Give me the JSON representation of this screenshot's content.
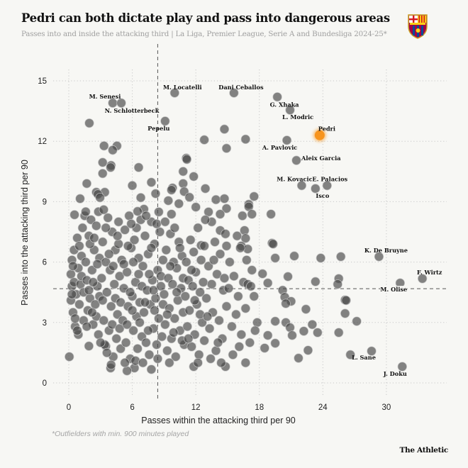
{
  "header": {
    "title": "Pedri can both dictate play and pass into dangerous areas",
    "subtitle": "Passes into and inside the attacking third | La Liga, Premier League, Serie A and Bundesliga 2024-25*",
    "crest_icon": "fc-barcelona-crest"
  },
  "footer": {
    "footnote": "*Outfielders with min. 900 minutes played",
    "brand": "The Athletic"
  },
  "colors": {
    "background": "#f7f7f4",
    "dot": "#4a4a4a",
    "highlight": "#f7941d",
    "grid": "#c8c8c8"
  },
  "chart_data": {
    "type": "scatter",
    "title": "Pedri can both dictate play and pass into dangerous areas",
    "xlabel": "Passes within the attacking third per 90",
    "ylabel": "Passes into the attacking third per 90",
    "xlim": [
      -1.5,
      35.5
    ],
    "ylim": [
      -1,
      16
    ],
    "xticks": [
      0,
      6,
      12,
      18,
      24,
      30
    ],
    "yticks": [
      0,
      3,
      6,
      9,
      12,
      15
    ],
    "grid": true,
    "reference_lines": {
      "x_mean": 8.4,
      "y_mean": 4.68
    },
    "highlight": {
      "name": "Pedri",
      "x": 23.7,
      "y": 12.3
    },
    "labeled_points": [
      {
        "name": "M. Senesi",
        "x": 4.15,
        "y": 13.9
      },
      {
        "name": "N. Schlotterbeck",
        "x": 4.96,
        "y": 13.9
      },
      {
        "name": "Pepelu",
        "x": 9.1,
        "y": 13.0
      },
      {
        "name": "M. Locatelli",
        "x": 10.0,
        "y": 14.4
      },
      {
        "name": "Dani Ceballos",
        "x": 15.6,
        "y": 14.4
      },
      {
        "name": "G. Xhaka",
        "x": 19.7,
        "y": 14.2
      },
      {
        "name": "L. Modric",
        "x": 20.9,
        "y": 13.55
      },
      {
        "name": "A. Pavlovic",
        "x": 20.6,
        "y": 12.05
      },
      {
        "name": "Aleix Garcia",
        "x": 21.5,
        "y": 11.05
      },
      {
        "name": "M. Kovacic",
        "x": 22.0,
        "y": 9.8
      },
      {
        "name": "Isco",
        "x": 23.3,
        "y": 9.65
      },
      {
        "name": "E. Palacios",
        "x": 24.4,
        "y": 9.8
      },
      {
        "name": "K. De Bruyne",
        "x": 29.3,
        "y": 6.27
      },
      {
        "name": "F. Wirtz",
        "x": 33.4,
        "y": 5.18
      },
      {
        "name": "M. Olise",
        "x": 31.3,
        "y": 4.96
      },
      {
        "name": "L. Sane",
        "x": 28.6,
        "y": 1.58
      },
      {
        "name": "J. Doku",
        "x": 31.5,
        "y": 0.81
      }
    ],
    "points": [
      [
        1.94,
        12.9
      ],
      [
        3.33,
        11.77
      ],
      [
        4.55,
        11.77
      ],
      [
        4.15,
        11.56
      ],
      [
        3.2,
        10.95
      ],
      [
        4.0,
        10.8
      ],
      [
        3.95,
        10.7
      ],
      [
        3.2,
        10.4
      ],
      [
        6.6,
        10.7
      ],
      [
        1.7,
        9.9
      ],
      [
        6.0,
        9.8
      ],
      [
        7.8,
        9.96
      ],
      [
        8.2,
        9.4
      ],
      [
        6.8,
        9.2
      ],
      [
        2.6,
        9.47
      ],
      [
        3.4,
        9.47
      ],
      [
        2.75,
        9.37
      ],
      [
        1.07,
        9.15
      ],
      [
        2.95,
        9.2
      ],
      [
        12.8,
        12.07
      ],
      [
        16.7,
        12.1
      ],
      [
        14.9,
        11.65
      ],
      [
        14.7,
        12.6
      ],
      [
        11.1,
        11.16
      ],
      [
        11.15,
        11.1
      ],
      [
        10.8,
        10.5
      ],
      [
        11.8,
        10.25
      ],
      [
        10.8,
        9.9
      ],
      [
        12.9,
        9.65
      ],
      [
        9.8,
        9.68
      ],
      [
        10.9,
        9.5
      ],
      [
        11.4,
        9.22
      ],
      [
        9.4,
        9.05
      ],
      [
        10.4,
        8.9
      ],
      [
        9.7,
        9.58
      ],
      [
        13.9,
        9.1
      ],
      [
        14.7,
        9.15
      ],
      [
        17.5,
        9.26
      ],
      [
        17.0,
        8.87
      ],
      [
        17.0,
        8.75
      ],
      [
        14.9,
        8.66
      ],
      [
        19.1,
        8.38
      ],
      [
        17.3,
        8.38
      ],
      [
        16.4,
        8.3
      ],
      [
        12.0,
        8.73
      ],
      [
        9.7,
        8.38
      ],
      [
        8.5,
        8.49
      ],
      [
        7.1,
        8.63
      ],
      [
        6.5,
        8.52
      ],
      [
        0.54,
        8.35
      ],
      [
        14.3,
        8.38
      ],
      [
        13.2,
        8.49
      ],
      [
        16.6,
        7.57
      ],
      [
        16.7,
        7.18
      ],
      [
        14.9,
        6.8
      ],
      [
        16.3,
        6.8
      ],
      [
        16.9,
        6.65
      ],
      [
        12.5,
        6.83
      ],
      [
        14.3,
        7.57
      ],
      [
        13.5,
        8.0
      ],
      [
        19.5,
        6.2
      ],
      [
        21.3,
        6.3
      ],
      [
        23.8,
        6.2
      ],
      [
        25.7,
        6.27
      ],
      [
        20.7,
        5.28
      ],
      [
        23.3,
        5.03
      ],
      [
        25.5,
        5.18
      ],
      [
        25.4,
        4.9
      ],
      [
        26.1,
        4.12
      ],
      [
        26.2,
        4.1
      ],
      [
        26.1,
        3.45
      ],
      [
        27.2,
        3.06
      ],
      [
        25.5,
        2.5
      ],
      [
        23.0,
        2.9
      ],
      [
        23.5,
        2.5
      ],
      [
        22.2,
        2.57
      ],
      [
        22.4,
        3.66
      ],
      [
        22.6,
        1.62
      ],
      [
        21.7,
        1.23
      ],
      [
        20.5,
        3.0
      ],
      [
        20.9,
        2.75
      ],
      [
        21.1,
        2.36
      ],
      [
        19.5,
        3.06
      ],
      [
        20.2,
        4.6
      ],
      [
        20.4,
        4.26
      ],
      [
        21.0,
        4.05
      ],
      [
        20.5,
        3.94
      ],
      [
        19.5,
        1.97
      ],
      [
        18.5,
        1.73
      ],
      [
        18.8,
        4.96
      ],
      [
        18.3,
        5.42
      ],
      [
        19.2,
        6.94
      ],
      [
        19.3,
        6.9
      ],
      [
        18.8,
        2.36
      ],
      [
        26.6,
        1.4
      ],
      [
        0.05,
        1.3
      ],
      [
        1.9,
        1.83
      ],
      [
        3.5,
        1.83
      ],
      [
        3.95,
        0.74
      ],
      [
        6.2,
        0.74
      ],
      [
        7.8,
        0.67
      ],
      [
        5.5,
        0.6
      ],
      [
        11.8,
        0.81
      ],
      [
        14.8,
        0.81
      ],
      [
        16.7,
        1.0
      ],
      [
        0.2,
        5.4
      ],
      [
        0.3,
        4.8
      ],
      [
        0.2,
        4.1
      ],
      [
        0.4,
        3.5
      ],
      [
        0.3,
        6.1
      ],
      [
        0.5,
        5.0
      ],
      [
        0.6,
        2.8
      ],
      [
        0.5,
        6.6
      ],
      [
        0.8,
        7.2
      ],
      [
        0.9,
        5.7
      ],
      [
        0.7,
        4.4
      ],
      [
        1.0,
        3.9
      ],
      [
        0.9,
        2.4
      ],
      [
        1.2,
        6.3
      ],
      [
        1.1,
        4.9
      ],
      [
        1.3,
        7.7
      ],
      [
        1.4,
        3.1
      ],
      [
        1.2,
        5.3
      ],
      [
        1.5,
        8.3
      ],
      [
        0.6,
        3.2
      ],
      [
        0.4,
        5.8
      ],
      [
        1.0,
        6.8
      ],
      [
        1.4,
        4.5
      ],
      [
        0.8,
        2.6
      ],
      [
        0.3,
        4.4
      ],
      [
        1.6,
        6.0
      ],
      [
        1.7,
        5.1
      ],
      [
        1.8,
        3.6
      ],
      [
        1.9,
        7.3
      ],
      [
        2.0,
        4.2
      ],
      [
        2.1,
        8.1
      ],
      [
        2.2,
        5.6
      ],
      [
        2.3,
        2.9
      ],
      [
        2.4,
        6.6
      ],
      [
        2.5,
        3.9
      ],
      [
        2.6,
        7.8
      ],
      [
        2.7,
        4.8
      ],
      [
        2.8,
        2.4
      ],
      [
        2.9,
        6.2
      ],
      [
        1.7,
        2.8
      ],
      [
        2.0,
        6.9
      ],
      [
        2.3,
        5.0
      ],
      [
        2.6,
        3.3
      ],
      [
        2.8,
        8.5
      ],
      [
        1.9,
        4.6
      ],
      [
        2.4,
        7.2
      ],
      [
        2.7,
        5.9
      ],
      [
        1.6,
        8.5
      ],
      [
        2.2,
        3.5
      ],
      [
        2.9,
        4.3
      ],
      [
        3.1,
        5.2
      ],
      [
        3.2,
        7.0
      ],
      [
        3.3,
        3.1
      ],
      [
        3.4,
        1.9
      ],
      [
        3.5,
        6.0
      ],
      [
        3.6,
        4.5
      ],
      [
        3.7,
        8.2
      ],
      [
        3.8,
        2.6
      ],
      [
        3.9,
        5.6
      ],
      [
        4.0,
        3.8
      ],
      [
        4.1,
        7.5
      ],
      [
        4.2,
        1.3
      ],
      [
        4.3,
        4.9
      ],
      [
        4.4,
        6.6
      ],
      [
        4.5,
        2.2
      ],
      [
        4.6,
        3.4
      ],
      [
        4.7,
        8.0
      ],
      [
        4.8,
        5.3
      ],
      [
        4.9,
        1.7
      ],
      [
        3.2,
        4.1
      ],
      [
        3.5,
        7.7
      ],
      [
        3.8,
        6.4
      ],
      [
        4.1,
        2.9
      ],
      [
        4.4,
        4.2
      ],
      [
        4.7,
        6.9
      ],
      [
        3.0,
        2.0
      ],
      [
        3.6,
        1.5
      ],
      [
        4.2,
        5.8
      ],
      [
        4.9,
        4.0
      ],
      [
        4.6,
        7.3
      ],
      [
        3.3,
        8.6
      ],
      [
        4.0,
        0.9
      ],
      [
        4.8,
        2.7
      ],
      [
        5.0,
        6.1
      ],
      [
        5.1,
        3.1
      ],
      [
        5.2,
        4.7
      ],
      [
        5.3,
        7.6
      ],
      [
        5.4,
        2.0
      ],
      [
        5.5,
        5.5
      ],
      [
        5.6,
        3.8
      ],
      [
        5.7,
        8.3
      ],
      [
        5.8,
        1.2
      ],
      [
        5.9,
        6.7
      ],
      [
        6.0,
        4.3
      ],
      [
        6.1,
        2.6
      ],
      [
        6.2,
        7.1
      ],
      [
        6.3,
        5.0
      ],
      [
        6.4,
        3.3
      ],
      [
        6.5,
        1.7
      ],
      [
        6.6,
        6.2
      ],
      [
        6.7,
        4.0
      ],
      [
        6.8,
        8.1
      ],
      [
        6.9,
        2.3
      ],
      [
        5.2,
        5.9
      ],
      [
        5.5,
        2.9
      ],
      [
        5.8,
        4.5
      ],
      [
        6.1,
        6.0
      ],
      [
        6.4,
        7.7
      ],
      [
        6.7,
        3.0
      ],
      [
        5.3,
        1.0
      ],
      [
        5.6,
        6.8
      ],
      [
        6.0,
        3.6
      ],
      [
        6.3,
        1.1
      ],
      [
        6.6,
        5.4
      ],
      [
        6.9,
        4.8
      ],
      [
        5.9,
        7.9
      ],
      [
        7.0,
        5.8
      ],
      [
        7.1,
        3.5
      ],
      [
        7.2,
        7.3
      ],
      [
        7.3,
        2.0
      ],
      [
        7.4,
        4.6
      ],
      [
        7.5,
        6.4
      ],
      [
        7.6,
        1.4
      ],
      [
        7.7,
        3.9
      ],
      [
        7.8,
        8.0
      ],
      [
        7.9,
        5.1
      ],
      [
        8.0,
        2.7
      ],
      [
        8.1,
        6.9
      ],
      [
        8.2,
        4.2
      ],
      [
        8.3,
        1.9
      ],
      [
        8.4,
        5.6
      ],
      [
        8.5,
        3.2
      ],
      [
        8.6,
        7.5
      ],
      [
        8.7,
        4.8
      ],
      [
        8.8,
        2.3
      ],
      [
        8.9,
        6.1
      ],
      [
        7.2,
        4.0
      ],
      [
        7.5,
        2.6
      ],
      [
        7.8,
        6.7
      ],
      [
        8.1,
        3.6
      ],
      [
        8.4,
        1.2
      ],
      [
        8.7,
        5.3
      ],
      [
        7.0,
        1.0
      ],
      [
        7.6,
        5.4
      ],
      [
        8.3,
        7.9
      ],
      [
        8.9,
        3.9
      ],
      [
        7.3,
        8.3
      ],
      [
        8.0,
        4.6
      ],
      [
        9.0,
        4.4
      ],
      [
        9.1,
        2.9
      ],
      [
        9.2,
        6.6
      ],
      [
        9.3,
        1.6
      ],
      [
        9.4,
        5.2
      ],
      [
        9.5,
        3.7
      ],
      [
        9.6,
        7.4
      ],
      [
        9.7,
        2.2
      ],
      [
        9.8,
        4.9
      ],
      [
        9.9,
        6.0
      ],
      [
        10.0,
        3.2
      ],
      [
        10.1,
        1.3
      ],
      [
        10.2,
        5.7
      ],
      [
        10.3,
        4.1
      ],
      [
        10.4,
        7.0
      ],
      [
        10.5,
        2.6
      ],
      [
        10.6,
        4.7
      ],
      [
        10.7,
        6.3
      ],
      [
        10.8,
        3.5
      ],
      [
        10.9,
        1.9
      ],
      [
        9.3,
        3.4
      ],
      [
        9.6,
        5.8
      ],
      [
        9.9,
        2.5
      ],
      [
        10.2,
        4.5
      ],
      [
        10.5,
        6.7
      ],
      [
        10.8,
        5.2
      ],
      [
        9.1,
        8.0
      ],
      [
        10.0,
        7.7
      ],
      [
        10.7,
        2.1
      ],
      [
        9.5,
        1.0
      ],
      [
        11.0,
        4.3
      ],
      [
        11.1,
        6.0
      ],
      [
        11.2,
        2.8
      ],
      [
        11.3,
        5.1
      ],
      [
        11.4,
        3.6
      ],
      [
        11.5,
        7.1
      ],
      [
        11.6,
        1.8
      ],
      [
        11.7,
        4.8
      ],
      [
        11.8,
        6.5
      ],
      [
        11.9,
        2.4
      ],
      [
        12.0,
        5.5
      ],
      [
        12.1,
        3.9
      ],
      [
        12.2,
        7.7
      ],
      [
        12.3,
        1.4
      ],
      [
        12.4,
        4.5
      ],
      [
        12.5,
        6.1
      ],
      [
        12.6,
        3.0
      ],
      [
        12.7,
        5.0
      ],
      [
        12.8,
        2.1
      ],
      [
        12.9,
        8.1
      ],
      [
        11.3,
        2.2
      ],
      [
        11.9,
        4.1
      ],
      [
        12.4,
        3.4
      ],
      [
        12.8,
        6.8
      ],
      [
        11.6,
        5.6
      ],
      [
        12.2,
        1.0
      ],
      [
        13.0,
        4.2
      ],
      [
        13.2,
        5.8
      ],
      [
        13.3,
        2.7
      ],
      [
        13.5,
        4.9
      ],
      [
        13.6,
        3.5
      ],
      [
        13.8,
        7.0
      ],
      [
        13.9,
        1.6
      ],
      [
        14.0,
        5.4
      ],
      [
        14.2,
        3.1
      ],
      [
        14.3,
        6.4
      ],
      [
        14.5,
        2.2
      ],
      [
        14.6,
        4.6
      ],
      [
        14.8,
        7.4
      ],
      [
        14.9,
        3.8
      ],
      [
        13.4,
        1.2
      ],
      [
        14.1,
        2.0
      ],
      [
        14.7,
        5.2
      ],
      [
        13.7,
        6.1
      ],
      [
        14.4,
        1.0
      ],
      [
        13.1,
        3.3
      ],
      [
        15.1,
        4.7
      ],
      [
        15.2,
        6.0
      ],
      [
        15.4,
        2.8
      ],
      [
        15.6,
        5.3
      ],
      [
        15.8,
        3.4
      ],
      [
        16.0,
        4.3
      ],
      [
        16.2,
        6.7
      ],
      [
        16.3,
        2.4
      ],
      [
        16.5,
        5.0
      ],
      [
        16.7,
        3.7
      ],
      [
        16.9,
        4.9
      ],
      [
        17.1,
        2.0
      ],
      [
        17.3,
        5.6
      ],
      [
        17.5,
        4.3
      ],
      [
        17.8,
        3.0
      ],
      [
        15.5,
        1.4
      ],
      [
        16.1,
        1.8
      ],
      [
        16.8,
        6.1
      ],
      [
        17.6,
        2.6
      ],
      [
        15.9,
        7.3
      ],
      [
        17.2,
        4.8
      ]
    ]
  }
}
